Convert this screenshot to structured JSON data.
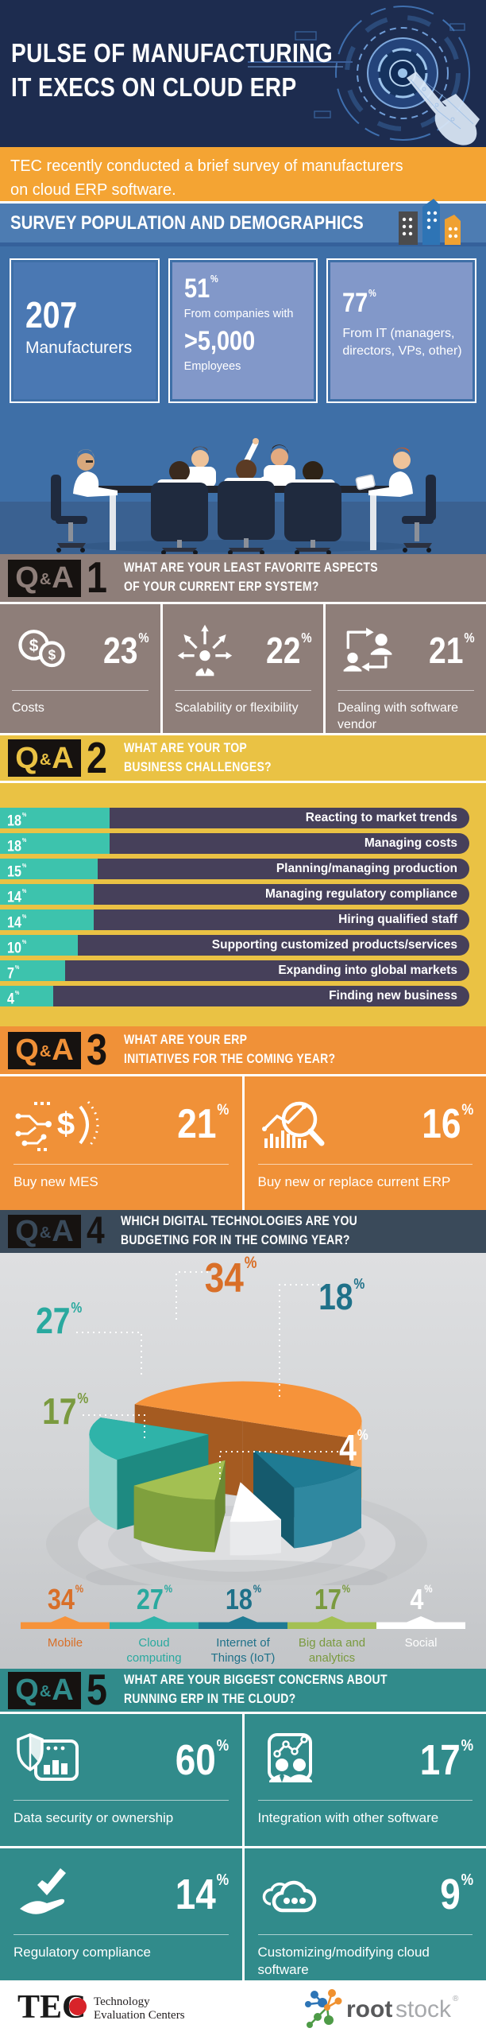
{
  "pct_sign": "%",
  "hero": {
    "title1": "PULSE OF MANUFACTURING",
    "title2": "IT EXECS ON CLOUD ERP"
  },
  "intro": {
    "text": "TEC recently conducted a brief survey of manufacturers on cloud ERP software."
  },
  "demographics": {
    "title": "SURVEY POPULATION AND DEMOGRAPHICS",
    "card1": {
      "value": "207",
      "label": "Manufacturers"
    },
    "card2": {
      "pct": "51",
      "line1": "From companies with",
      "big": ">5,000",
      "line2": "Employees"
    },
    "card3": {
      "pct": "77",
      "label": "From IT (managers, directors, VPs, other)"
    }
  },
  "qa_badge": {
    "q": "Q",
    "amp": "&",
    "a": "A"
  },
  "qa1": {
    "number": "1",
    "q1": "WHAT ARE YOUR LEAST FAVORITE ASPECTS",
    "q2": "OF YOUR CURRENT ERP SYSTEM?",
    "items": [
      {
        "pct": "23",
        "label": "Costs"
      },
      {
        "pct": "22",
        "label": "Scalability or flexibility"
      },
      {
        "pct": "21",
        "label": "Dealing with software vendor"
      }
    ]
  },
  "qa2": {
    "number": "2",
    "q1": "WHAT ARE YOUR TOP",
    "q2": "BUSINESS CHALLENGES?"
  },
  "qa3": {
    "number": "3",
    "q1": "WHAT ARE YOUR ERP",
    "q2": "INITIATIVES FOR THE COMING YEAR?",
    "items": [
      {
        "pct": "21",
        "label": "Buy new MES"
      },
      {
        "pct": "16",
        "label": "Buy new or replace current ERP"
      }
    ]
  },
  "qa4": {
    "number": "4",
    "q1": "WHICH DIGITAL TECHNOLOGIES ARE YOU",
    "q2": "BUDGETING FOR IN THE COMING YEAR?"
  },
  "qa5": {
    "number": "5",
    "q1": "WHAT ARE YOUR BIGGEST CONCERNS ABOUT",
    "q2": "RUNNING ERP IN THE CLOUD?",
    "items": [
      {
        "pct": "60",
        "label": "Data security or ownership"
      },
      {
        "pct": "17",
        "label": "Integration with other software"
      },
      {
        "pct": "14",
        "label": "Regulatory compliance"
      },
      {
        "pct": "9",
        "label": "Customizing/modifying cloud software"
      }
    ]
  },
  "chart_data": [
    {
      "type": "bar",
      "title": "What are your top business challenges?",
      "unit": "%",
      "orientation": "horizontal",
      "categories": [
        "Reacting to market trends",
        "Managing costs",
        "Planning/managing production",
        "Managing regulatory compliance",
        "Hiring qualified staff",
        "Supporting customized products/services",
        "Expanding into global markets",
        "Finding new business"
      ],
      "values": [
        18,
        18,
        15,
        14,
        14,
        10,
        7,
        4
      ],
      "bar_track_color": "#46405a",
      "bar_fill_color": "#3dc3ad",
      "background": "#eac244",
      "value_labels": "inside-left",
      "category_labels": "inside-right"
    },
    {
      "type": "pie",
      "title": "Which digital technologies are you budgeting for in the coming year?",
      "unit": "%",
      "style": "3d-exploded",
      "legend_position": "bottom",
      "categories": [
        "Mobile",
        "Cloud computing",
        "Internet of Things (IoT)",
        "Big data and analytics",
        "Social"
      ],
      "values": [
        34,
        27,
        18,
        17,
        4
      ],
      "colors": [
        "#f6933a",
        "#2fb3a9",
        "#1f7b93",
        "#a3c052",
        "#ffffff"
      ],
      "label_colors": [
        "#d96f28",
        "#29a99f",
        "#1f7189",
        "#7a9a3f",
        "#ffffff"
      ]
    }
  ],
  "footer": {
    "tec_logo_text": "TEC",
    "tec_line1": "Technology",
    "tec_line2": "Evaluation Centers",
    "rootstock_bold": "root",
    "rootstock_light": "stock",
    "registered": "®"
  }
}
